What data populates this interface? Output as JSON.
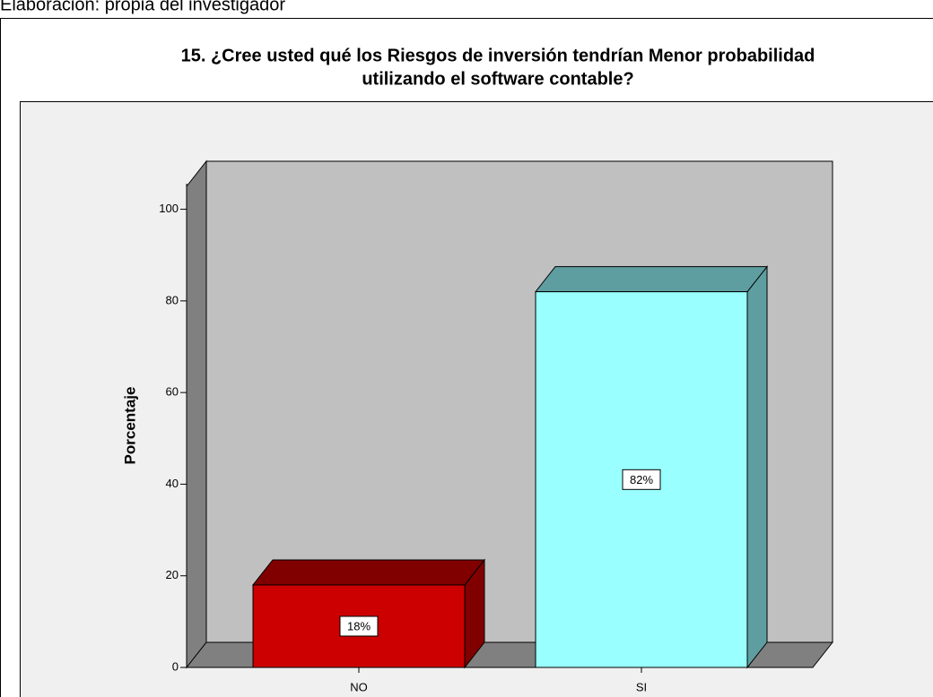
{
  "caption": "Elaboración: propia del investigador",
  "chart_data": {
    "type": "bar3d",
    "title": [
      "15. ¿Cree usted qué los Riesgos de inversión tendrían Menor probabilidad",
      "utilizando el software contable?"
    ],
    "y_label": "Porcentaje",
    "categories": [
      "NO",
      "SI"
    ],
    "values": [
      18,
      82
    ],
    "value_labels": [
      "18%",
      "82%"
    ],
    "colors": [
      "#cc0000",
      "#99ffff"
    ],
    "top_colors": [
      "#800000",
      "#5f9ea0"
    ],
    "ylim": [
      0,
      105
    ],
    "yticks": [
      0,
      20,
      40,
      60,
      80,
      100
    ]
  }
}
